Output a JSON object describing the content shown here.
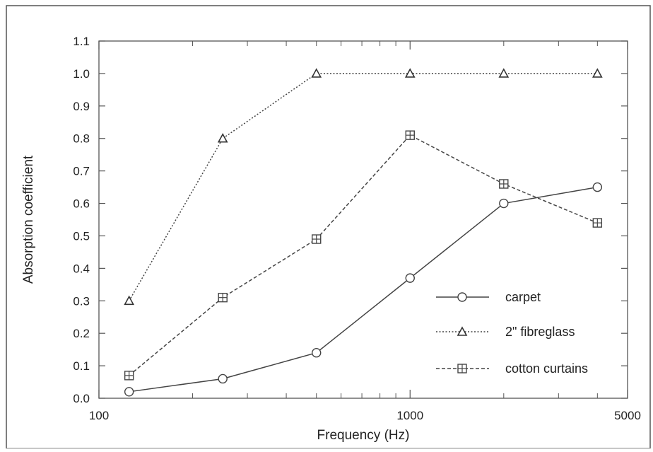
{
  "chart_data": {
    "type": "line",
    "title": "",
    "xlabel": "Frequency (Hz)",
    "ylabel": "Absorption coefficient",
    "xscale": "log",
    "xlim": [
      100,
      5000
    ],
    "ylim": [
      0.0,
      1.1
    ],
    "x_tick_labels": [
      {
        "value": 100,
        "label": "100"
      },
      {
        "value": 1000,
        "label": "1000"
      },
      {
        "value": 5000,
        "label": "5000"
      }
    ],
    "x_minor_ticks": [
      200,
      300,
      400,
      500,
      600,
      700,
      800,
      900,
      2000,
      3000,
      4000
    ],
    "y_ticks": [
      {
        "value": 0.0,
        "label": "0.0"
      },
      {
        "value": 0.1,
        "label": "0.1"
      },
      {
        "value": 0.2,
        "label": "0.2"
      },
      {
        "value": 0.3,
        "label": "0.3"
      },
      {
        "value": 0.4,
        "label": "0.4"
      },
      {
        "value": 0.5,
        "label": "0.5"
      },
      {
        "value": 0.6,
        "label": "0.6"
      },
      {
        "value": 0.7,
        "label": "0.7"
      },
      {
        "value": 0.8,
        "label": "0.8"
      },
      {
        "value": 0.9,
        "label": "0.9"
      },
      {
        "value": 1.0,
        "label": "1.0"
      },
      {
        "value": 1.1,
        "label": "1.1"
      }
    ],
    "grid": false,
    "legend_position": "bottom-right",
    "x": [
      125,
      250,
      500,
      1000,
      2000,
      4000
    ],
    "series": [
      {
        "name": "carpet",
        "marker": "circle",
        "line": "solid",
        "color": "#444444",
        "values": [
          0.02,
          0.06,
          0.14,
          0.37,
          0.6,
          0.65
        ]
      },
      {
        "name": "2\" fibreglass",
        "marker": "triangle",
        "line": "dotted",
        "color": "#444444",
        "values": [
          0.3,
          0.8,
          1.0,
          1.0,
          1.0,
          1.0
        ]
      },
      {
        "name": "cotton curtains",
        "marker": "boxed-plus",
        "line": "dashed",
        "color": "#444444",
        "values": [
          0.07,
          0.31,
          0.49,
          0.81,
          0.66,
          0.54
        ]
      }
    ]
  }
}
